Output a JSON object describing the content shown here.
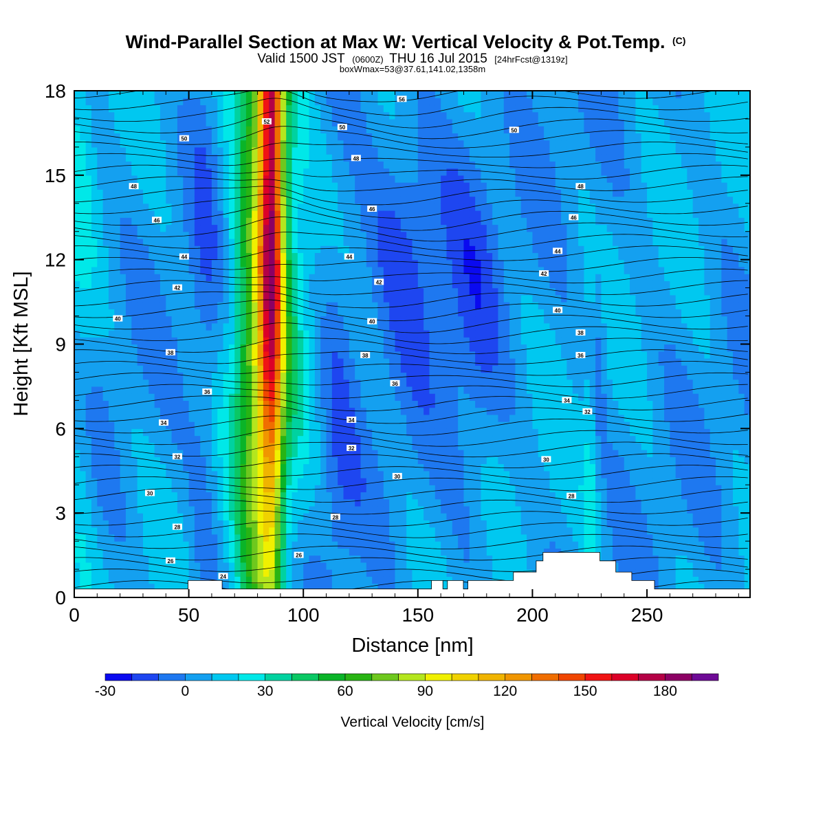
{
  "title": {
    "main": "Wind-Parallel Section at Max W: Vertical Velocity & Pot.Temp.",
    "main_suffix": "(C)",
    "sub_valid": "Valid 1500 JST",
    "sub_zulu": "(0600Z)",
    "sub_date": "THU 16 Jul 2015",
    "sub_fcst": "[24hrFcst@1319z]",
    "sub2": "boxWmax=53@37.61,141.02,1358m"
  },
  "chart_data": {
    "type": "heatmap",
    "xlabel": "Distance [nm]",
    "ylabel": "Height [Kft MSL]",
    "xlim": [
      0,
      295
    ],
    "ylim": [
      0,
      18
    ],
    "x_ticks": [
      0,
      50,
      100,
      150,
      200,
      250
    ],
    "y_ticks": [
      0,
      3,
      6,
      9,
      12,
      15,
      18
    ],
    "colorbar": {
      "title": "Vertical Velocity [cm/s]",
      "range": [
        -30,
        200
      ],
      "step": 10,
      "tick_labels": [
        "-30",
        "0",
        "30",
        "60",
        "90",
        "120",
        "150",
        "180"
      ],
      "tick_values": [
        -30,
        0,
        30,
        60,
        90,
        120,
        150,
        180
      ],
      "colors": [
        "#0a0af0",
        "#1e46f0",
        "#1e78f0",
        "#14a0f0",
        "#00c8f0",
        "#00e8e8",
        "#00d2a0",
        "#0ac864",
        "#0ab428",
        "#28b414",
        "#6ec81e",
        "#b4e61e",
        "#f0f000",
        "#f0d200",
        "#f0b400",
        "#f09600",
        "#f06e00",
        "#f04600",
        "#f01414",
        "#dc0028",
        "#b40046",
        "#8c0064",
        "#6e0a96"
      ]
    },
    "theta_contour_labels": [
      {
        "value": "24",
        "x": 65,
        "y": 0.75
      },
      {
        "value": "26",
        "x": 42,
        "y": 1.3
      },
      {
        "value": "26",
        "x": 98,
        "y": 1.5
      },
      {
        "value": "28",
        "x": 45,
        "y": 2.5
      },
      {
        "value": "28",
        "x": 114,
        "y": 2.85
      },
      {
        "value": "30",
        "x": 33,
        "y": 3.7
      },
      {
        "value": "30",
        "x": 141,
        "y": 4.3
      },
      {
        "value": "30",
        "x": 206,
        "y": 4.9
      },
      {
        "value": "28",
        "x": 217,
        "y": 3.6
      },
      {
        "value": "32",
        "x": 45,
        "y": 5.0
      },
      {
        "value": "32",
        "x": 121,
        "y": 5.3
      },
      {
        "value": "32",
        "x": 224,
        "y": 6.6
      },
      {
        "value": "34",
        "x": 39,
        "y": 6.2
      },
      {
        "value": "34",
        "x": 121,
        "y": 6.3
      },
      {
        "value": "34",
        "x": 215,
        "y": 7.0
      },
      {
        "value": "36",
        "x": 58,
        "y": 7.3
      },
      {
        "value": "36",
        "x": 140,
        "y": 7.6
      },
      {
        "value": "36",
        "x": 221,
        "y": 8.6
      },
      {
        "value": "38",
        "x": 42,
        "y": 8.7
      },
      {
        "value": "38",
        "x": 127,
        "y": 8.6
      },
      {
        "value": "38",
        "x": 221,
        "y": 9.4
      },
      {
        "value": "40",
        "x": 19,
        "y": 9.9
      },
      {
        "value": "40",
        "x": 130,
        "y": 9.8
      },
      {
        "value": "40",
        "x": 211,
        "y": 10.2
      },
      {
        "value": "42",
        "x": 45,
        "y": 11.0
      },
      {
        "value": "42",
        "x": 133,
        "y": 11.2
      },
      {
        "value": "42",
        "x": 205,
        "y": 11.5
      },
      {
        "value": "44",
        "x": 48,
        "y": 12.1
      },
      {
        "value": "44",
        "x": 120,
        "y": 12.1
      },
      {
        "value": "44",
        "x": 211,
        "y": 12.3
      },
      {
        "value": "46",
        "x": 36,
        "y": 13.4
      },
      {
        "value": "46",
        "x": 130,
        "y": 13.8
      },
      {
        "value": "46",
        "x": 218,
        "y": 13.5
      },
      {
        "value": "48",
        "x": 26,
        "y": 14.6
      },
      {
        "value": "48",
        "x": 123,
        "y": 15.6
      },
      {
        "value": "48",
        "x": 221,
        "y": 14.6
      },
      {
        "value": "50",
        "x": 48,
        "y": 16.3
      },
      {
        "value": "50",
        "x": 117,
        "y": 16.7
      },
      {
        "value": "50",
        "x": 192,
        "y": 16.6
      },
      {
        "value": "52",
        "x": 84,
        "y": 16.9
      },
      {
        "value": "56",
        "x": 143,
        "y": 17.7
      }
    ],
    "terrain_kft": [
      0.3,
      0.3,
      0.3,
      0.3,
      0.3,
      0.3,
      0.3,
      0.3,
      0.3,
      0.3,
      0.3,
      0.3,
      0.3,
      0.3,
      0.3,
      0.3,
      0.3,
      0.3,
      0.3,
      0.3,
      0.3,
      0.3,
      0.3,
      0.3,
      0.3,
      0.3,
      0.3,
      0.3,
      0.3,
      0.3,
      0.3,
      0.3,
      0.3,
      0.3,
      0.3,
      0.3,
      0.3,
      0.3,
      0.3,
      0.3,
      0.3,
      0.3,
      0.3,
      0.3,
      0.3,
      0.3,
      0.3,
      0.3,
      0.3,
      0.3,
      0.6,
      0.6,
      0.6,
      0.6,
      0.6,
      0.6,
      0.6,
      0.6,
      0.6,
      0.6,
      0.6,
      0.6,
      0.6,
      0.6,
      0.6,
      0.3,
      0.3,
      0.3,
      0.3,
      0.3,
      0.3,
      0.3,
      0.3,
      0.3,
      0.3,
      0.3,
      0.3,
      0.3,
      0.3,
      0.3,
      0.3,
      0.3,
      0.3,
      0.3,
      0.3,
      0.3,
      0.3,
      0.3,
      0.3,
      0.3,
      0.3,
      0.3,
      0.3,
      0.3,
      0.3,
      0.3,
      0.3,
      0.3,
      0.3,
      0.3,
      0.3,
      0.3,
      0.3,
      0.3,
      0.3,
      0.3,
      0.3,
      0.3,
      0.3,
      0.3,
      0.3,
      0.3,
      0.3,
      0.3,
      0.3,
      0.3,
      0.3,
      0.3,
      0.3,
      0.3,
      0.3,
      0.3,
      0.3,
      0.3,
      0.3,
      0.3,
      0.3,
      0.3,
      0.3,
      0.3,
      0.3,
      0.3,
      0.3,
      0.3,
      0.3,
      0.3,
      0.3,
      0.3,
      0.3,
      0.3,
      0.3,
      0.3,
      0.3,
      0.3,
      0.3,
      0.3,
      0.3,
      0.3,
      0.3,
      0.3,
      0.3,
      0.3,
      0.3,
      0.3,
      0.3,
      0.3,
      0.3,
      0.6,
      0.6,
      0.6,
      0.6,
      0.6,
      0.3,
      0.3,
      0.6,
      0.6,
      0.6,
      0.6,
      0.6,
      0.6,
      0.6,
      0.3,
      0.3,
      0.6,
      0.6,
      0.6,
      0.6,
      0.6,
      0.6,
      0.6,
      0.6,
      0.6,
      0.6,
      0.6,
      0.6,
      0.6,
      0.6,
      0.6,
      0.6,
      0.6,
      0.6,
      0.6,
      0.6,
      0.9,
      0.9,
      0.9,
      0.9,
      0.9,
      0.9,
      0.9,
      0.9,
      0.9,
      0.9,
      1.3,
      1.3,
      1.3,
      1.6,
      1.6,
      1.6,
      1.6,
      1.6,
      1.6,
      1.6,
      1.6,
      1.6,
      1.6,
      1.6,
      1.6,
      1.6,
      1.6,
      1.6,
      1.6,
      1.6,
      1.6,
      1.6,
      1.6,
      1.6,
      1.6,
      1.6,
      1.6,
      1.6,
      1.3,
      1.3,
      1.3,
      1.3,
      1.3,
      1.3,
      1.3,
      0.9,
      0.9,
      0.9,
      0.9,
      0.9,
      0.9,
      0.9,
      0.6,
      0.6,
      0.6,
      0.6,
      0.6,
      0.6,
      0.6,
      0.6,
      0.6,
      0.6,
      0.3,
      0.3,
      0.3,
      0.3,
      0.3,
      0.3,
      0.3,
      0.3,
      0.3,
      0.3,
      0.3,
      0.3,
      0.3,
      0.3,
      0.3,
      0.3,
      0.3,
      0.3,
      0.3,
      0.3,
      0.3,
      0.3,
      0.3,
      0.3,
      0.3,
      0.3,
      0.3,
      0.3,
      0.3,
      0.3,
      0.3,
      0.3,
      0.3,
      0.3,
      0.3,
      0.3,
      0.3,
      0.3,
      0.3,
      0.3,
      0.3,
      0.3,
      0.3
    ]
  }
}
